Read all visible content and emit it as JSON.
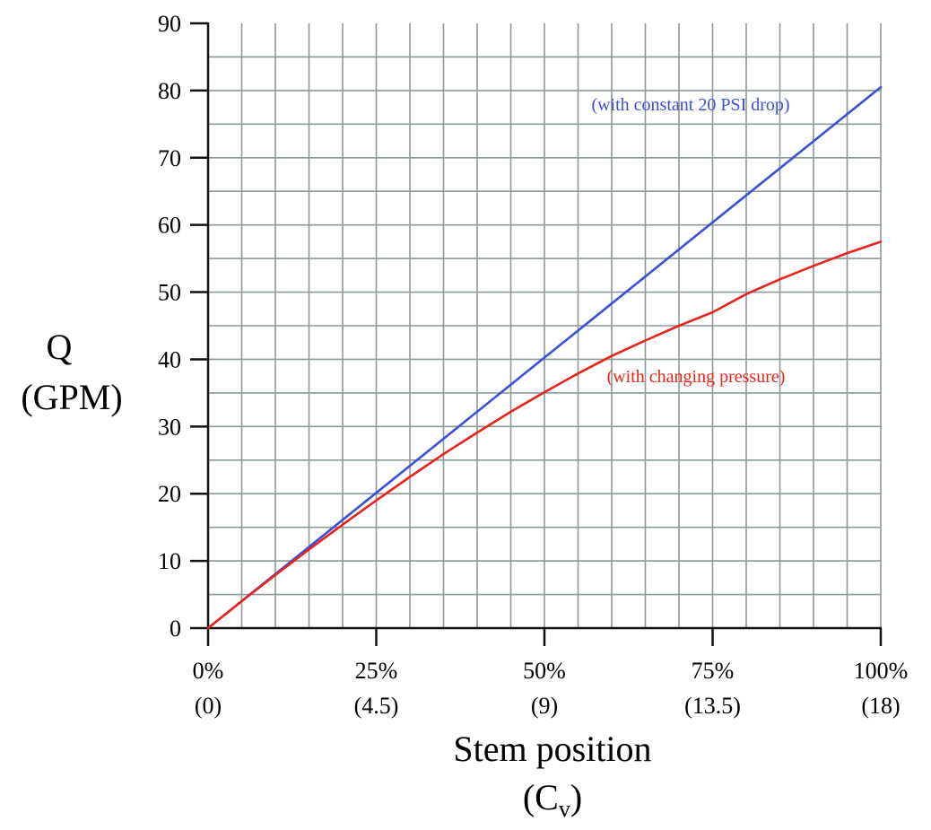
{
  "chart_data": {
    "type": "line",
    "ylabel": "Q",
    "ylabel_unit": "(GPM)",
    "xlabel": "Stem position",
    "xlabel_unit_main": "(C",
    "xlabel_unit_sub": "v",
    "xlabel_unit_close": ")",
    "x_range": [
      0,
      100
    ],
    "ylim": [
      0,
      90
    ],
    "y_ticks": [
      0,
      10,
      20,
      30,
      40,
      50,
      60,
      70,
      80,
      90
    ],
    "x_ticks": [
      {
        "value": 0,
        "label": "0%",
        "sub": "(0)"
      },
      {
        "value": 25,
        "label": "25%",
        "sub": "(4.5)"
      },
      {
        "value": 50,
        "label": "50%",
        "sub": "(9)"
      },
      {
        "value": 75,
        "label": "75%",
        "sub": "(13.5)"
      },
      {
        "value": 100,
        "label": "100%",
        "sub": "(18)"
      }
    ],
    "grid": true,
    "series": [
      {
        "name": "(with constant 20 PSI drop)",
        "color": "#3a4fd8",
        "x": [
          0,
          100
        ],
        "y": [
          0,
          80.5
        ]
      },
      {
        "name": "(with changing pressure)",
        "color": "#e8231c",
        "x": [
          0,
          5,
          10,
          15,
          20,
          25,
          30,
          35,
          40,
          45,
          50,
          55,
          60,
          65,
          70,
          75,
          80,
          85,
          90,
          95,
          100
        ],
        "y": [
          0,
          4.0,
          7.9,
          11.7,
          15.4,
          19.0,
          22.5,
          25.9,
          29.1,
          32.2,
          35.1,
          37.9,
          40.5,
          42.8,
          45.0,
          47.0,
          49.7,
          51.9,
          53.9,
          55.8,
          57.5
        ]
      }
    ]
  }
}
